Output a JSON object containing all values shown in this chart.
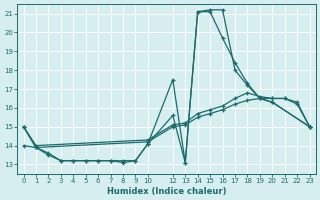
{
  "xlabel": "Humidex (Indice chaleur)",
  "bg_color": "#d6eef0",
  "grid_color": "#c8dfe0",
  "line_color": "#1a6b6b",
  "xlim": [
    -0.5,
    23.5
  ],
  "ylim": [
    12.5,
    21.5
  ],
  "xticks": [
    0,
    1,
    2,
    3,
    4,
    5,
    6,
    7,
    8,
    9,
    10,
    12,
    13,
    14,
    15,
    16,
    17,
    18,
    19,
    20,
    21,
    22,
    23
  ],
  "yticks": [
    13,
    14,
    15,
    16,
    17,
    18,
    19,
    20,
    21
  ],
  "lines": [
    {
      "x": [
        0,
        1,
        2,
        3,
        4,
        5,
        6,
        7,
        8,
        9,
        10,
        12,
        13,
        14,
        15,
        16,
        17,
        18,
        19,
        20,
        23
      ],
      "y": [
        15.0,
        13.9,
        13.6,
        13.2,
        13.2,
        13.2,
        13.2,
        13.2,
        13.1,
        13.2,
        14.1,
        17.5,
        13.1,
        21.1,
        21.1,
        19.7,
        18.4,
        17.3,
        16.5,
        16.3,
        15.0
      ]
    },
    {
      "x": [
        0,
        1,
        2,
        3,
        4,
        5,
        6,
        7,
        8,
        9,
        10,
        12,
        13,
        14,
        15,
        16,
        17,
        18,
        19,
        20,
        23
      ],
      "y": [
        15.0,
        13.9,
        13.5,
        13.2,
        13.2,
        13.2,
        13.2,
        13.2,
        13.2,
        13.2,
        14.1,
        15.6,
        13.1,
        21.1,
        21.2,
        21.2,
        18.0,
        17.2,
        16.5,
        16.3,
        15.0
      ]
    },
    {
      "x": [
        0,
        1,
        10,
        12,
        13,
        14,
        15,
        16,
        17,
        18,
        19,
        20,
        21,
        22,
        23
      ],
      "y": [
        14.0,
        13.9,
        14.2,
        15.0,
        15.1,
        15.5,
        15.7,
        15.9,
        16.2,
        16.4,
        16.5,
        16.5,
        16.5,
        16.3,
        15.0
      ]
    },
    {
      "x": [
        0,
        1,
        10,
        12,
        13,
        14,
        15,
        16,
        17,
        18,
        19,
        20,
        21,
        22,
        23
      ],
      "y": [
        15.0,
        14.0,
        14.3,
        15.1,
        15.2,
        15.7,
        15.9,
        16.1,
        16.5,
        16.8,
        16.6,
        16.5,
        16.5,
        16.2,
        15.0
      ]
    }
  ]
}
